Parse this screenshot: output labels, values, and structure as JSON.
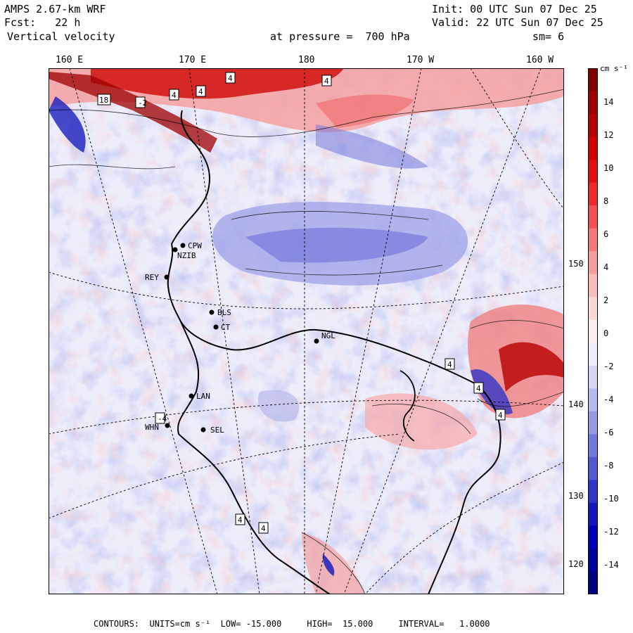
{
  "header": {
    "model": "AMPS 2.67-km WRF",
    "init": "Init: 00 UTC Sun 07 Dec 25",
    "fcst": "Fcst:   22 h",
    "valid": "Valid: 22 UTC Sun 07 Dec 25",
    "variable": "Vertical velocity",
    "pressure": "at pressure =  700 hPa",
    "smoothing": "sm= 6"
  },
  "longitude_labels": [
    "160 E",
    "170 E",
    "180",
    "170 W",
    "160 W"
  ],
  "latitude_labels": [
    "150 W",
    "140 W",
    "130 W",
    "120 W"
  ],
  "stations": [
    "CPW",
    "NZIB",
    "REY",
    "BLS",
    "CT",
    "NGL",
    "LAN",
    "WHN",
    "SEL"
  ],
  "contour_labels": [
    "4",
    "4",
    "4",
    "4",
    "-2",
    "18",
    "4",
    "4",
    "4",
    "-4",
    "4",
    "4"
  ],
  "colorbar": {
    "unit": "cm s⁻¹",
    "ticks": [
      "14",
      "12",
      "10",
      "8",
      "6",
      "4",
      "2",
      "0",
      "-2",
      "-4",
      "-6",
      "-8",
      "-10",
      "-12",
      "-14"
    ],
    "colors": [
      "#800000",
      "#9e0000",
      "#b80000",
      "#d00000",
      "#e01010",
      "#ec2a2a",
      "#f25252",
      "#f47878",
      "#f69c9c",
      "#f8bcbc",
      "#fad8d8",
      "#fdeeee",
      "#eeeefb",
      "#d4d6f4",
      "#b6b9ec",
      "#9699e4",
      "#7479dc",
      "#5257d2",
      "#3035c8",
      "#1217be",
      "#0000b4",
      "#00009a",
      "#000080"
    ]
  },
  "footer": {
    "text": "CONTOURS:  UNITS=cm s⁻¹  LOW= -15.000     HIGH=  15.000     INTERVAL=   1.0000"
  }
}
